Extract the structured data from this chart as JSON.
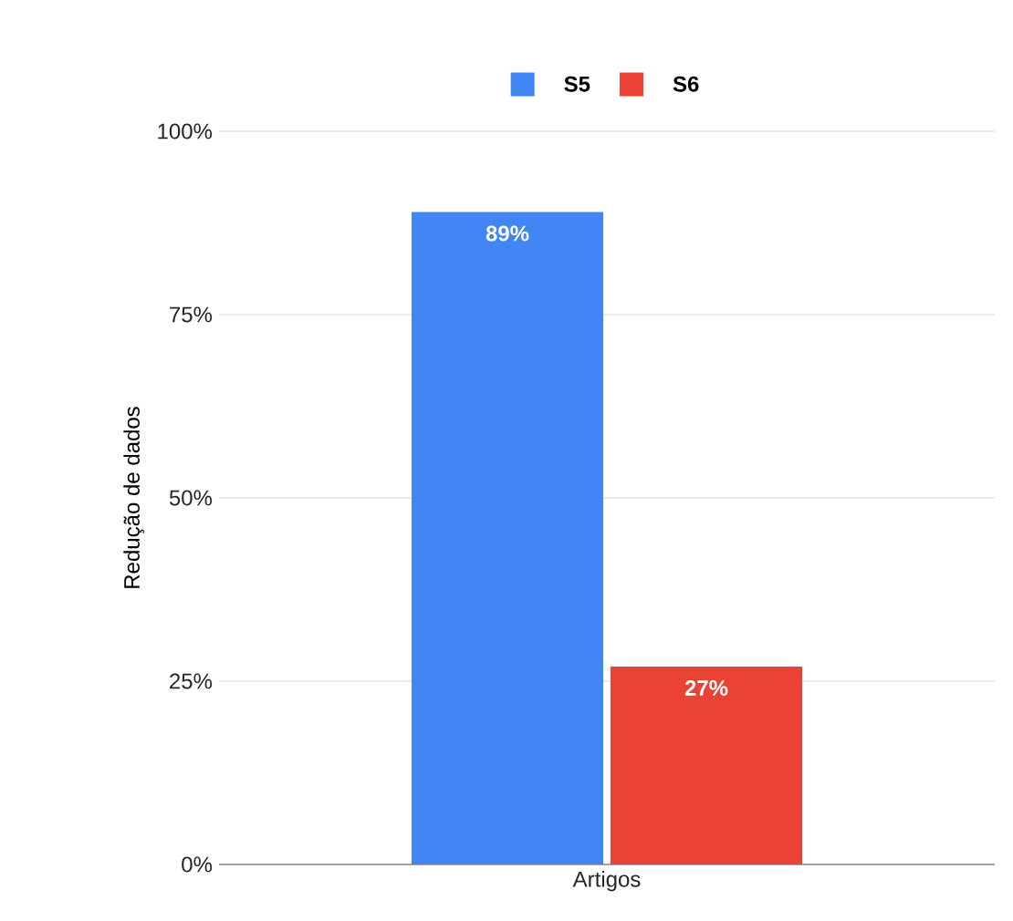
{
  "chart_data": {
    "type": "bar",
    "ylabel": "Redução de dados",
    "categories": [
      "Artigos"
    ],
    "series": [
      {
        "name": "S5",
        "color": "#4285f4",
        "values": [
          89
        ],
        "value_labels": [
          "89%"
        ]
      },
      {
        "name": "S6",
        "color": "#ea4335",
        "values": [
          27
        ],
        "value_labels": [
          "27%"
        ]
      }
    ],
    "ylim": [
      0,
      100
    ],
    "yticks": [
      {
        "value": 0,
        "label": "0%"
      },
      {
        "value": 25,
        "label": "25%"
      },
      {
        "value": 50,
        "label": "50%"
      },
      {
        "value": 75,
        "label": "75%"
      },
      {
        "value": 100,
        "label": "100%"
      }
    ],
    "grid": "y",
    "legend": "top"
  }
}
